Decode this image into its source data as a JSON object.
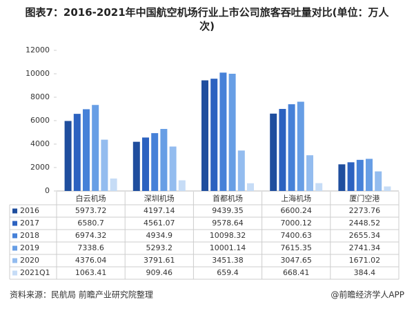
{
  "chart_data": {
    "type": "bar",
    "title": "图表7：2016-2021年中国航空机场行业上市公司旅客吞吐量对比(单位：万人次)",
    "categories": [
      "白云机场",
      "深圳机场",
      "首都机场",
      "上海机场",
      "厦门空港"
    ],
    "series": [
      {
        "name": "2016",
        "color": "#1f4e9e",
        "values": [
          5973.72,
          4197.14,
          9439.35,
          6600.24,
          2273.76
        ]
      },
      {
        "name": "2017",
        "color": "#2c62c0",
        "values": [
          6580.7,
          4561.07,
          9578.64,
          7000.12,
          2448.52
        ]
      },
      {
        "name": "2018",
        "color": "#4681d8",
        "values": [
          6974.32,
          4934.9,
          10098.32,
          7400.63,
          2655.34
        ]
      },
      {
        "name": "2019",
        "color": "#679ee5",
        "values": [
          7338.6,
          5293.2,
          10001.14,
          7615.35,
          2741.34
        ]
      },
      {
        "name": "2020",
        "color": "#93bcef",
        "values": [
          4376.04,
          3791.61,
          3451.38,
          3047.65,
          1671.02
        ]
      },
      {
        "name": "2021Q1",
        "color": "#c6dcf6",
        "values": [
          1063.41,
          909.46,
          659.4,
          668.41,
          384.4
        ]
      }
    ],
    "ylim": [
      0,
      12000
    ],
    "yticks": [
      0,
      2000,
      4000,
      6000,
      8000,
      10000,
      12000
    ],
    "grid": false,
    "source": "资料来源：民航局 前瞻产业研究院整理",
    "brand": "@前瞻经济学人APP"
  }
}
